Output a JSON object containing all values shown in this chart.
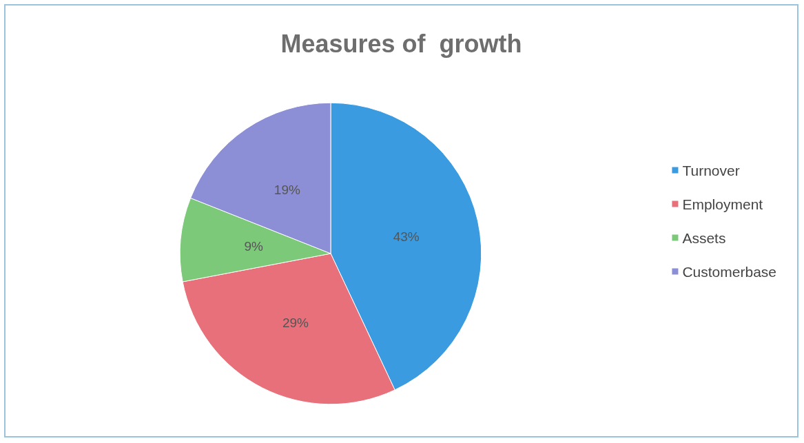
{
  "chart_data": {
    "type": "pie",
    "title": "Measures of  growth",
    "categories": [
      "Turnover",
      "Employment",
      "Assets",
      "Customerbase"
    ],
    "values": [
      43,
      29,
      9,
      19
    ],
    "colors": [
      "#3b9be0",
      "#e8707a",
      "#7dc97a",
      "#8d8fd6"
    ],
    "value_labels": [
      "43%",
      "29%",
      "9%",
      "19%"
    ],
    "legend": "right"
  }
}
